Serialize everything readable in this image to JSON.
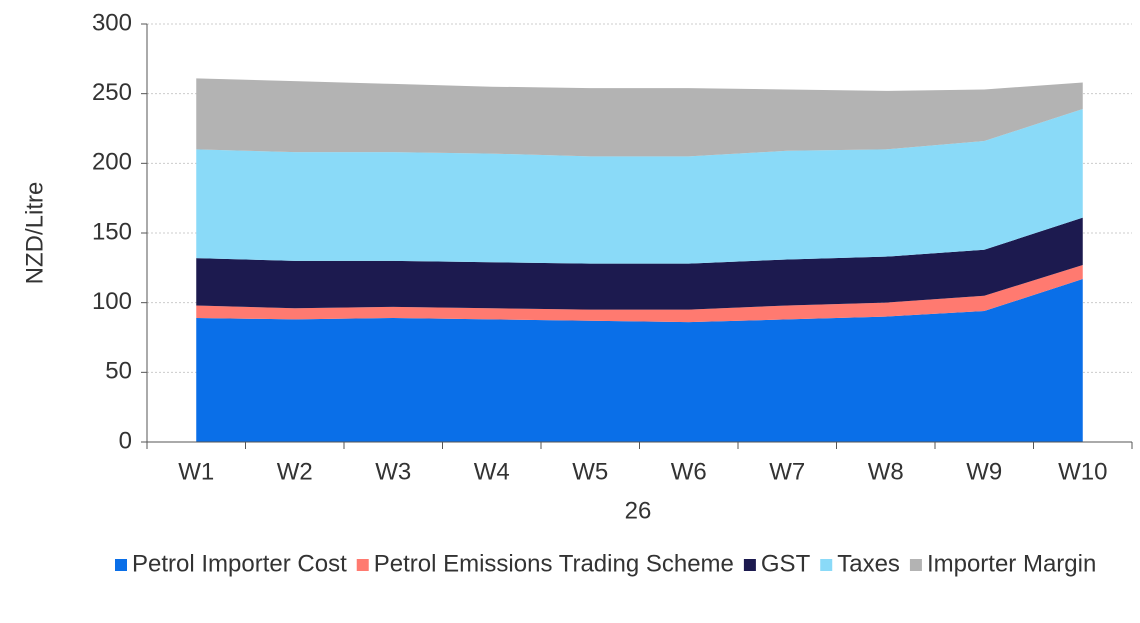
{
  "chart_data": {
    "type": "stacked_area",
    "categories": [
      "W1",
      "W2",
      "W3",
      "W4",
      "W5",
      "W6",
      "W7",
      "W8",
      "W9",
      "W10"
    ],
    "xlabel": "26",
    "ylabel": "NZD/Litre",
    "ylim": [
      0,
      300
    ],
    "yticks": [
      0,
      50,
      100,
      150,
      200,
      250,
      300
    ],
    "grid": true,
    "legend": "bottom",
    "series": [
      {
        "name": "Petrol Importer Cost",
        "color": "#0a6fe8",
        "values": [
          89,
          88,
          89,
          88,
          87,
          86,
          88,
          90,
          94,
          117
        ]
      },
      {
        "name": "Petrol Emissions Trading Scheme",
        "color": "#ff7a70",
        "values": [
          9,
          8,
          8,
          8,
          8,
          9,
          10,
          10,
          11,
          10
        ]
      },
      {
        "name": "GST",
        "color": "#1c1a4f",
        "values": [
          34,
          34,
          33,
          33,
          33,
          33,
          33,
          33,
          33,
          34
        ]
      },
      {
        "name": "Taxes",
        "color": "#8adaf8",
        "values": [
          78,
          78,
          78,
          78,
          77,
          77,
          78,
          77,
          78,
          78
        ]
      },
      {
        "name": "Importer Margin",
        "color": "#b3b3b3",
        "values": [
          51,
          51,
          49,
          48,
          49,
          49,
          44,
          42,
          37,
          19
        ]
      }
    ]
  }
}
